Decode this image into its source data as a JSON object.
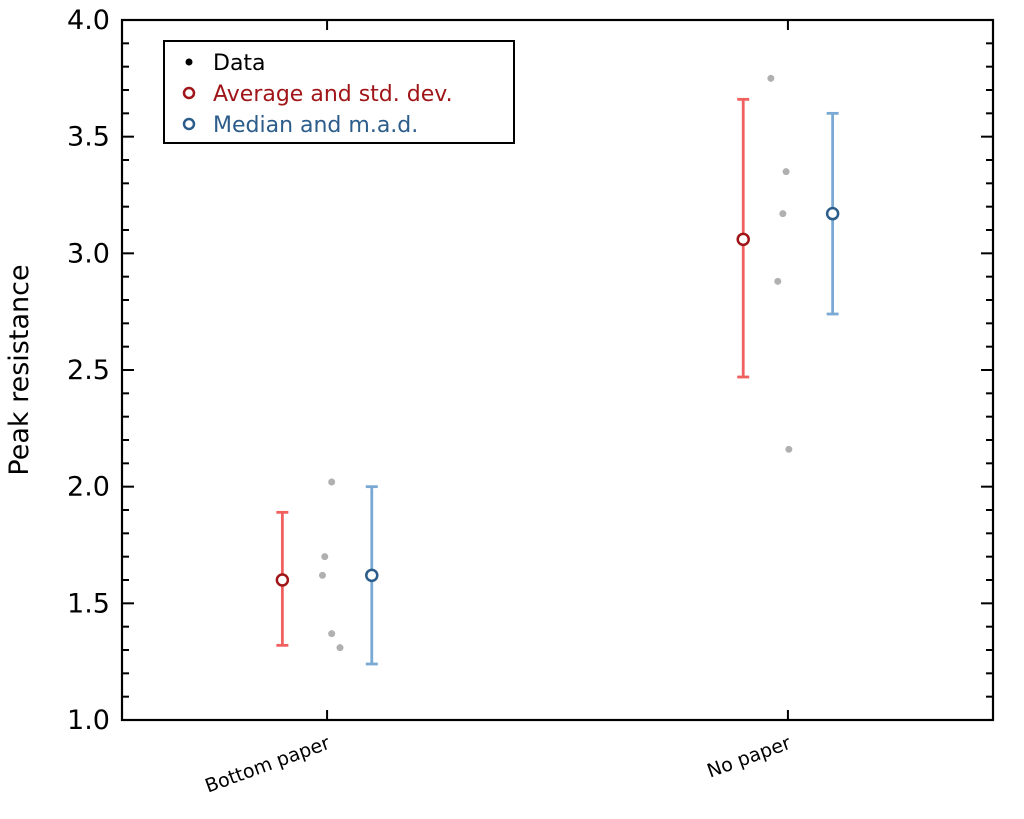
{
  "chart_data": {
    "type": "scatter",
    "title": "",
    "xlabel": "",
    "ylabel": "Peak resistance",
    "ylim": [
      1.0,
      4.0
    ],
    "xlim": [
      -0.445,
      1.445
    ],
    "yticks": [
      1.0,
      1.5,
      2.0,
      2.5,
      3.0,
      3.5,
      4.0
    ],
    "ytick_labels": [
      "1.0",
      "1.5",
      "2.0",
      "2.5",
      "3.0",
      "3.5",
      "4.0"
    ],
    "categories": [
      "Bottom paper",
      "No paper"
    ],
    "grid": false,
    "legend": {
      "placement": "top-left",
      "entries": [
        {
          "label": "Data",
          "color": "#000000",
          "marker": "filled-dot"
        },
        {
          "label": "Average and std. dev.",
          "color": "#a01518",
          "marker": "open-circle"
        },
        {
          "label": "Median and m.a.d.",
          "color": "#2b5c8a",
          "marker": "open-circle"
        }
      ]
    },
    "series": [
      {
        "name": "Data",
        "color": "#b0b0b0",
        "points": [
          {
            "category": 0,
            "x_offset": 0.01,
            "y": 2.02
          },
          {
            "category": 0,
            "x_offset": -0.005,
            "y": 1.7
          },
          {
            "category": 0,
            "x_offset": -0.01,
            "y": 1.62
          },
          {
            "category": 0,
            "x_offset": 0.01,
            "y": 1.37
          },
          {
            "category": 0,
            "x_offset": 0.028,
            "y": 1.31
          },
          {
            "category": 1,
            "x_offset": -0.037,
            "y": 3.75
          },
          {
            "category": 1,
            "x_offset": -0.004,
            "y": 3.35
          },
          {
            "category": 1,
            "x_offset": -0.011,
            "y": 3.17
          },
          {
            "category": 1,
            "x_offset": -0.022,
            "y": 2.88
          },
          {
            "category": 1,
            "x_offset": 0.002,
            "y": 2.16
          }
        ]
      },
      {
        "name": "Average and std. dev.",
        "color": "#a01518",
        "errcolor": "#f0605e",
        "x_offset": -0.097,
        "values": [
          1.6,
          3.06
        ],
        "err_low": [
          1.32,
          2.47
        ],
        "err_high": [
          1.89,
          3.66
        ]
      },
      {
        "name": "Median and m.a.d.",
        "color": "#2b5c8a",
        "errcolor": "#7aaad4",
        "x_offset": 0.097,
        "values": [
          1.62,
          3.17
        ],
        "err_low": [
          1.24,
          2.74
        ],
        "err_high": [
          2.0,
          3.6
        ]
      }
    ]
  }
}
